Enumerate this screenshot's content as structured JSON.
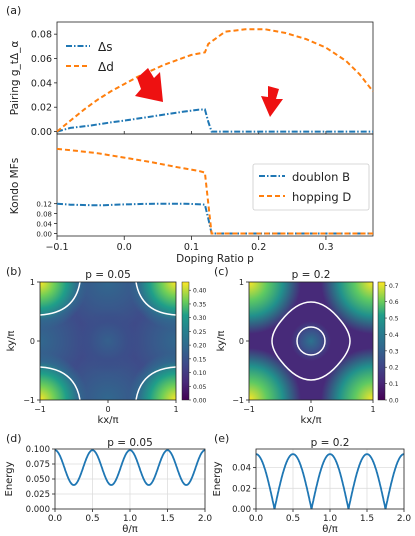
{
  "panel_labels": {
    "a": "(a)",
    "b": "(b)",
    "c": "(c)",
    "d": "(d)",
    "e": "(e)"
  },
  "colors": {
    "delta_s": "#1f77b4",
    "delta_d": "#ff7f0e",
    "arrow": "#ee1111",
    "contour": "#ffffff",
    "energy": "#1f77b4"
  },
  "chart_data": [
    {
      "id": "a_top",
      "type": "line",
      "ylabel": "Pairing g_tΔ_α",
      "xlim": [
        -0.1,
        0.37
      ],
      "ylim": [
        -0.002,
        0.09
      ],
      "yticks": [
        "0.00",
        "0.02",
        "0.04",
        "0.06",
        "0.08"
      ],
      "ytick_values": [
        0,
        0.02,
        0.04,
        0.06,
        0.08
      ],
      "legend_position": "upper-left",
      "annotations": [
        "two red arrows marking Δs (near p = 0.05) and the collapse beyond p ≈ 0.13 (near p = 0.22)"
      ],
      "series": [
        {
          "name": "Δs",
          "color": "#1f77b4",
          "style": "dashdot",
          "x": [
            -0.1,
            -0.08,
            -0.05,
            -0.02,
            0.0,
            0.03,
            0.06,
            0.09,
            0.11,
            0.12,
            0.125,
            0.13,
            0.2,
            0.25,
            0.3,
            0.37
          ],
          "y": [
            0.0,
            0.003,
            0.005,
            0.0075,
            0.009,
            0.0115,
            0.014,
            0.0165,
            0.018,
            0.0182,
            0.008,
            0.0,
            0.0,
            0.0,
            0.0,
            0.0
          ]
        },
        {
          "name": "Δd",
          "color": "#ff7f0e",
          "style": "dashed",
          "x": [
            -0.1,
            -0.08,
            -0.06,
            -0.04,
            -0.02,
            0.0,
            0.02,
            0.04,
            0.06,
            0.08,
            0.1,
            0.12,
            0.125,
            0.13,
            0.15,
            0.18,
            0.21,
            0.24,
            0.27,
            0.3,
            0.33,
            0.35,
            0.37
          ],
          "y": [
            0.0,
            0.009,
            0.018,
            0.026,
            0.033,
            0.039,
            0.045,
            0.05,
            0.055,
            0.059,
            0.063,
            0.065,
            0.072,
            0.074,
            0.082,
            0.084,
            0.084,
            0.081,
            0.076,
            0.069,
            0.058,
            0.047,
            0.033
          ]
        }
      ]
    },
    {
      "id": "a_bottom",
      "type": "line",
      "ylabel": "Kondo MFs",
      "xlabel": "Doping Ratio p",
      "xlim": [
        -0.1,
        0.37
      ],
      "xticks": [
        "−0.1",
        "0.0",
        "0.1",
        "0.2",
        "0.3"
      ],
      "xtick_values": [
        -0.1,
        0.0,
        0.1,
        0.2,
        0.3
      ],
      "ylim": [
        -0.01,
        0.4
      ],
      "yticks": [
        "0.00",
        "0.04",
        "0.08",
        "0.12"
      ],
      "ytick_values": [
        0,
        0.04,
        0.08,
        0.12
      ],
      "legend_position": "upper-right",
      "series": [
        {
          "name": "doublon B",
          "color": "#1f77b4",
          "style": "dashdot",
          "x": [
            -0.1,
            -0.08,
            -0.05,
            -0.03,
            0.0,
            0.03,
            0.06,
            0.09,
            0.11,
            0.12,
            0.125,
            0.13,
            0.2,
            0.3,
            0.37
          ],
          "y": [
            0.12,
            0.116,
            0.114,
            0.114,
            0.117,
            0.119,
            0.12,
            0.12,
            0.118,
            0.116,
            0.06,
            0.0,
            0.0,
            0.0,
            0.0
          ]
        },
        {
          "name": "hopping D",
          "color": "#ff7f0e",
          "style": "dashed",
          "x": [
            -0.1,
            -0.07,
            -0.04,
            0.0,
            0.04,
            0.08,
            0.11,
            0.12,
            0.125,
            0.13,
            0.2,
            0.3,
            0.37
          ],
          "y": [
            0.34,
            0.332,
            0.323,
            0.305,
            0.287,
            0.266,
            0.252,
            0.245,
            0.12,
            0.0,
            0.0,
            0.0,
            0.0
          ]
        }
      ]
    },
    {
      "id": "b",
      "type": "heatmap",
      "title": "p = 0.05",
      "xlabel": "kx/π",
      "ylabel": "ky/π",
      "xlim": [
        -1,
        1
      ],
      "ylim": [
        -1,
        1
      ],
      "xticks": [
        "−1",
        "0",
        "1"
      ],
      "yticks": [
        "−1",
        "0",
        "1"
      ],
      "colorbar_range": [
        0.0,
        0.43
      ],
      "colorbar_ticks": [
        "0.00",
        "0.05",
        "0.10",
        "0.15",
        "0.20",
        "0.25",
        "0.30",
        "0.35",
        "0.40"
      ],
      "colorbar_tick_values": [
        0,
        0.05,
        0.1,
        0.15,
        0.2,
        0.25,
        0.3,
        0.35,
        0.4
      ],
      "colormap": "viridis",
      "contours": "white Fermi-surface lines curving around each corner"
    },
    {
      "id": "c",
      "type": "heatmap",
      "title": "p = 0.2",
      "xlabel": "kx/π",
      "ylabel": "ky/π",
      "xlim": [
        -1,
        1
      ],
      "ylim": [
        -1,
        1
      ],
      "xticks": [
        "−1",
        "0",
        "1"
      ],
      "yticks": [
        "−1",
        "0",
        "1"
      ],
      "colorbar_range": [
        0.0,
        0.72
      ],
      "colorbar_ticks": [
        "0.0",
        "0.1",
        "0.2",
        "0.3",
        "0.4",
        "0.5",
        "0.6",
        "0.7"
      ],
      "colorbar_tick_values": [
        0,
        0.1,
        0.2,
        0.3,
        0.4,
        0.5,
        0.6,
        0.7
      ],
      "colormap": "viridis",
      "contours": "white rounded-diamond line plus small central circle"
    },
    {
      "id": "d",
      "type": "line",
      "title": "p = 0.05",
      "xlabel": "θ/π",
      "ylabel": "Energy",
      "xlim": [
        0,
        2
      ],
      "ylim": [
        0,
        0.1
      ],
      "xticks": [
        "0.0",
        "0.5",
        "1.0",
        "1.5",
        "2.0"
      ],
      "xtick_values": [
        0,
        0.5,
        1.0,
        1.5,
        2.0
      ],
      "yticks": [
        "0.000",
        "0.025",
        "0.050",
        "0.075",
        "0.100"
      ],
      "ytick_values": [
        0,
        0.025,
        0.05,
        0.075,
        0.1
      ],
      "grid": true,
      "series": [
        {
          "formula": "E = 0.069 + 0.029·cos(4πθ) shape",
          "period": 0.5,
          "min": 0.04,
          "max": 0.098,
          "max_at": 0
        }
      ]
    },
    {
      "id": "e",
      "type": "line",
      "title": "p = 0.2",
      "xlabel": "θ/π",
      "ylabel": "Energy",
      "xlim": [
        0,
        2
      ],
      "ylim": [
        0,
        0.058
      ],
      "xticks": [
        "0.0",
        "0.5",
        "1.0",
        "1.5",
        "2.0"
      ],
      "xtick_values": [
        0,
        0.5,
        1.0,
        1.5,
        2.0
      ],
      "yticks": [
        "0.00",
        "0.02",
        "0.04"
      ],
      "ytick_values": [
        0,
        0.02,
        0.04
      ],
      "grid": true,
      "series": [
        {
          "formula": "E = 0.053·|cos(2πθ)|",
          "period": 0.5,
          "min": 0.0,
          "max": 0.053,
          "max_at": 0
        }
      ]
    }
  ]
}
